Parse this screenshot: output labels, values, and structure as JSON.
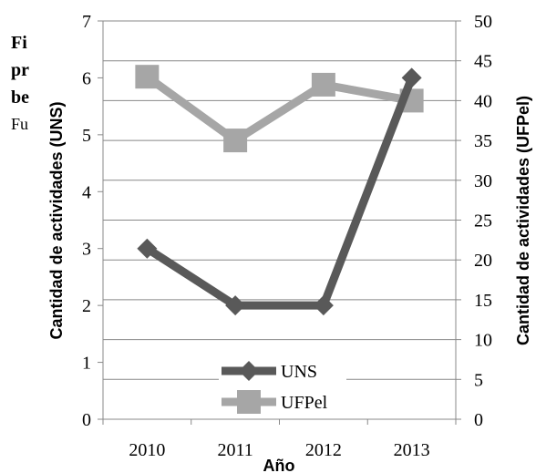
{
  "background_caption": {
    "line1": "Fi",
    "line2": "pr",
    "line3": "be",
    "line4": "Fu"
  },
  "chart_data": {
    "type": "line",
    "categories": [
      "2010",
      "2011",
      "2012",
      "2013"
    ],
    "xlabel": "Año",
    "ylabel_left": "Cantidad de actividades (UNS)",
    "ylabel_right": "Cantidad de actividades (UFPel)",
    "ylim_left": [
      0,
      7
    ],
    "yticks_left": [
      "0",
      "1",
      "2",
      "3",
      "4",
      "5",
      "6",
      "7"
    ],
    "ylim_right": [
      0,
      50
    ],
    "yticks_right": [
      "0",
      "5",
      "10",
      "15",
      "20",
      "25",
      "30",
      "35",
      "40",
      "45",
      "50"
    ],
    "grid": true,
    "legend_position": "bottom-center",
    "series": [
      {
        "name": "UNS",
        "axis": "left",
        "values": [
          3,
          2,
          2,
          6
        ],
        "color": "#595959",
        "marker": "diamond"
      },
      {
        "name": "UFPel",
        "axis": "right",
        "values": [
          43,
          35,
          42,
          40
        ],
        "color": "#a6a6a6",
        "marker": "square"
      }
    ]
  }
}
